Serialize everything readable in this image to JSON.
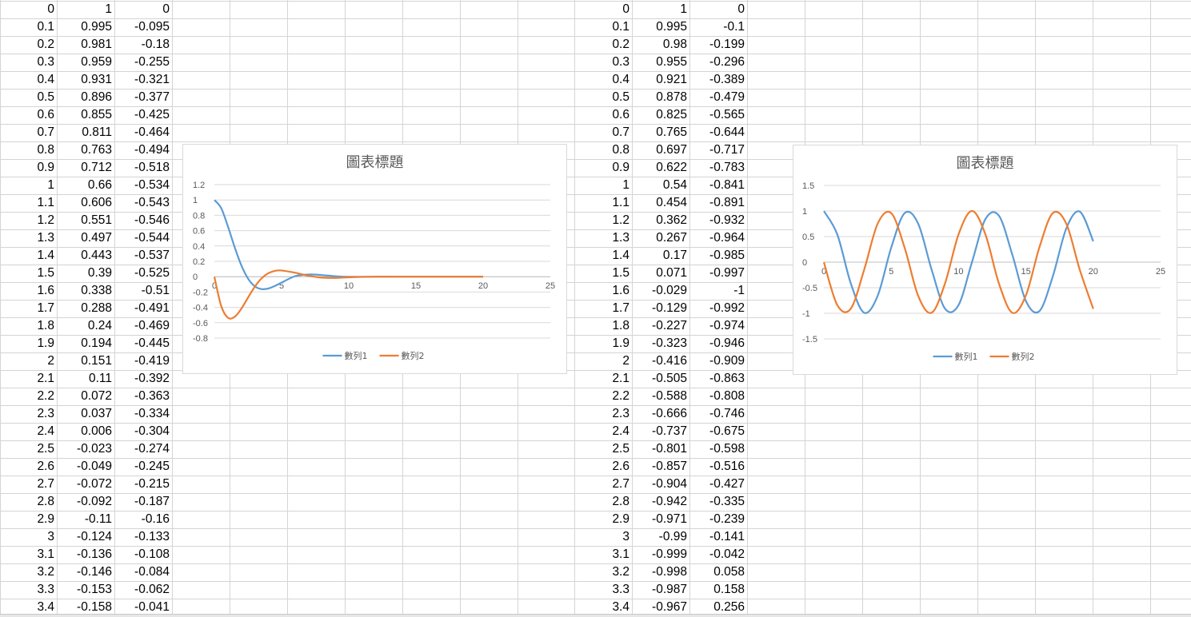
{
  "sheet": {
    "blocks": [
      {
        "rows": [
          [
            "0",
            "1",
            "0"
          ],
          [
            "0.1",
            "0.995",
            "-0.095"
          ],
          [
            "0.2",
            "0.981",
            "-0.18"
          ],
          [
            "0.3",
            "0.959",
            "-0.255"
          ],
          [
            "0.4",
            "0.931",
            "-0.321"
          ],
          [
            "0.5",
            "0.896",
            "-0.377"
          ],
          [
            "0.6",
            "0.855",
            "-0.425"
          ],
          [
            "0.7",
            "0.811",
            "-0.464"
          ],
          [
            "0.8",
            "0.763",
            "-0.494"
          ],
          [
            "0.9",
            "0.712",
            "-0.518"
          ],
          [
            "1",
            "0.66",
            "-0.534"
          ],
          [
            "1.1",
            "0.606",
            "-0.543"
          ],
          [
            "1.2",
            "0.551",
            "-0.546"
          ],
          [
            "1.3",
            "0.497",
            "-0.544"
          ],
          [
            "1.4",
            "0.443",
            "-0.537"
          ],
          [
            "1.5",
            "0.39",
            "-0.525"
          ],
          [
            "1.6",
            "0.338",
            "-0.51"
          ],
          [
            "1.7",
            "0.288",
            "-0.491"
          ],
          [
            "1.8",
            "0.24",
            "-0.469"
          ],
          [
            "1.9",
            "0.194",
            "-0.445"
          ],
          [
            "2",
            "0.151",
            "-0.419"
          ],
          [
            "2.1",
            "0.11",
            "-0.392"
          ],
          [
            "2.2",
            "0.072",
            "-0.363"
          ],
          [
            "2.3",
            "0.037",
            "-0.334"
          ],
          [
            "2.4",
            "0.006",
            "-0.304"
          ],
          [
            "2.5",
            "-0.023",
            "-0.274"
          ],
          [
            "2.6",
            "-0.049",
            "-0.245"
          ],
          [
            "2.7",
            "-0.072",
            "-0.215"
          ],
          [
            "2.8",
            "-0.092",
            "-0.187"
          ],
          [
            "2.9",
            "-0.11",
            "-0.16"
          ],
          [
            "3",
            "-0.124",
            "-0.133"
          ],
          [
            "3.1",
            "-0.136",
            "-0.108"
          ],
          [
            "3.2",
            "-0.146",
            "-0.084"
          ],
          [
            "3.3",
            "-0.153",
            "-0.062"
          ],
          [
            "3.4",
            "-0.158",
            "-0.041"
          ]
        ]
      },
      {
        "rows": [
          [
            "0",
            "1",
            "0"
          ],
          [
            "0.1",
            "0.995",
            "-0.1"
          ],
          [
            "0.2",
            "0.98",
            "-0.199"
          ],
          [
            "0.3",
            "0.955",
            "-0.296"
          ],
          [
            "0.4",
            "0.921",
            "-0.389"
          ],
          [
            "0.5",
            "0.878",
            "-0.479"
          ],
          [
            "0.6",
            "0.825",
            "-0.565"
          ],
          [
            "0.7",
            "0.765",
            "-0.644"
          ],
          [
            "0.8",
            "0.697",
            "-0.717"
          ],
          [
            "0.9",
            "0.622",
            "-0.783"
          ],
          [
            "1",
            "0.54",
            "-0.841"
          ],
          [
            "1.1",
            "0.454",
            "-0.891"
          ],
          [
            "1.2",
            "0.362",
            "-0.932"
          ],
          [
            "1.3",
            "0.267",
            "-0.964"
          ],
          [
            "1.4",
            "0.17",
            "-0.985"
          ],
          [
            "1.5",
            "0.071",
            "-0.997"
          ],
          [
            "1.6",
            "-0.029",
            "-1"
          ],
          [
            "1.7",
            "-0.129",
            "-0.992"
          ],
          [
            "1.8",
            "-0.227",
            "-0.974"
          ],
          [
            "1.9",
            "-0.323",
            "-0.946"
          ],
          [
            "2",
            "-0.416",
            "-0.909"
          ],
          [
            "2.1",
            "-0.505",
            "-0.863"
          ],
          [
            "2.2",
            "-0.588",
            "-0.808"
          ],
          [
            "2.3",
            "-0.666",
            "-0.746"
          ],
          [
            "2.4",
            "-0.737",
            "-0.675"
          ],
          [
            "2.5",
            "-0.801",
            "-0.598"
          ],
          [
            "2.6",
            "-0.857",
            "-0.516"
          ],
          [
            "2.7",
            "-0.904",
            "-0.427"
          ],
          [
            "2.8",
            "-0.942",
            "-0.335"
          ],
          [
            "2.9",
            "-0.971",
            "-0.239"
          ],
          [
            "3",
            "-0.99",
            "-0.141"
          ],
          [
            "3.1",
            "-0.999",
            "-0.042"
          ],
          [
            "3.2",
            "-0.998",
            "0.058"
          ],
          [
            "3.3",
            "-0.987",
            "0.158"
          ],
          [
            "3.4",
            "-0.967",
            "0.256"
          ]
        ]
      }
    ]
  },
  "colors": {
    "series1": "#5b9bd5",
    "series2": "#ed7d31",
    "gridline": "#d9d9d9",
    "axis_text": "#595959",
    "cell_grid": "#d4d4d4"
  },
  "chart_data": [
    {
      "type": "line",
      "title": "圖表標題",
      "xlim": [
        0,
        25
      ],
      "ylim": [
        -0.8,
        1.2
      ],
      "xticks": [
        "0",
        "5",
        "10",
        "15",
        "20",
        "25"
      ],
      "yticks": [
        "1.2",
        "1",
        "0.8",
        "0.6",
        "0.4",
        "0.2",
        "0",
        "-0.2",
        "-0.4",
        "-0.6",
        "-0.8"
      ],
      "grid": true,
      "legend_position": "bottom",
      "series": [
        {
          "name": "數列1",
          "x": [
            0,
            0.5,
            1,
            1.5,
            2,
            2.5,
            3,
            3.5,
            4,
            4.5,
            5,
            6,
            7,
            8,
            9,
            10,
            12,
            14,
            16,
            18,
            20
          ],
          "values": [
            1,
            0.896,
            0.66,
            0.39,
            0.151,
            -0.023,
            -0.124,
            -0.161,
            -0.155,
            -0.121,
            -0.077,
            0.006,
            0.029,
            0.021,
            0.006,
            -0.002,
            0,
            0,
            0,
            0,
            0
          ]
        },
        {
          "name": "數列2",
          "x": [
            0,
            0.5,
            1,
            1.5,
            2,
            2.5,
            3,
            3.5,
            4,
            4.5,
            5,
            6,
            7,
            8,
            9,
            10,
            12,
            14,
            16,
            18,
            20
          ],
          "values": [
            0,
            -0.377,
            -0.534,
            -0.525,
            -0.419,
            -0.274,
            -0.133,
            -0.024,
            0.044,
            0.076,
            0.081,
            0.052,
            0.012,
            -0.012,
            -0.016,
            -0.008,
            0,
            0,
            0,
            0,
            0
          ]
        }
      ]
    },
    {
      "type": "line",
      "title": "圖表標題",
      "xlim": [
        0,
        25
      ],
      "ylim": [
        -1.5,
        1.5
      ],
      "xticks": [
        "0",
        "5",
        "10",
        "15",
        "20",
        "25"
      ],
      "yticks": [
        "1.5",
        "1",
        "0.5",
        "0",
        "-0.5",
        "-1",
        "-1.5"
      ],
      "grid": true,
      "legend_position": "bottom",
      "series": [
        {
          "name": "數列1",
          "x": [
            0,
            1,
            2,
            3,
            4,
            5,
            6,
            7,
            8,
            9,
            10,
            11,
            12,
            13,
            14,
            15,
            16,
            17,
            18,
            19,
            20
          ],
          "values": [
            1,
            0.54,
            -0.416,
            -0.99,
            -0.654,
            0.284,
            0.96,
            0.754,
            -0.146,
            -0.911,
            -0.839,
            0.004,
            0.844,
            0.907,
            0.137,
            -0.76,
            -0.958,
            -0.275,
            0.66,
            0.989,
            0.408
          ]
        },
        {
          "name": "數列2",
          "x": [
            0,
            1,
            2,
            3,
            4,
            5,
            6,
            7,
            8,
            9,
            10,
            11,
            12,
            13,
            14,
            15,
            16,
            17,
            18,
            19,
            20
          ],
          "values": [
            0,
            -0.841,
            -0.909,
            -0.141,
            0.757,
            0.959,
            0.279,
            -0.657,
            -0.989,
            -0.412,
            0.544,
            1,
            0.537,
            -0.42,
            -0.991,
            -0.65,
            0.288,
            0.961,
            0.751,
            -0.15,
            -0.913
          ]
        }
      ]
    }
  ]
}
